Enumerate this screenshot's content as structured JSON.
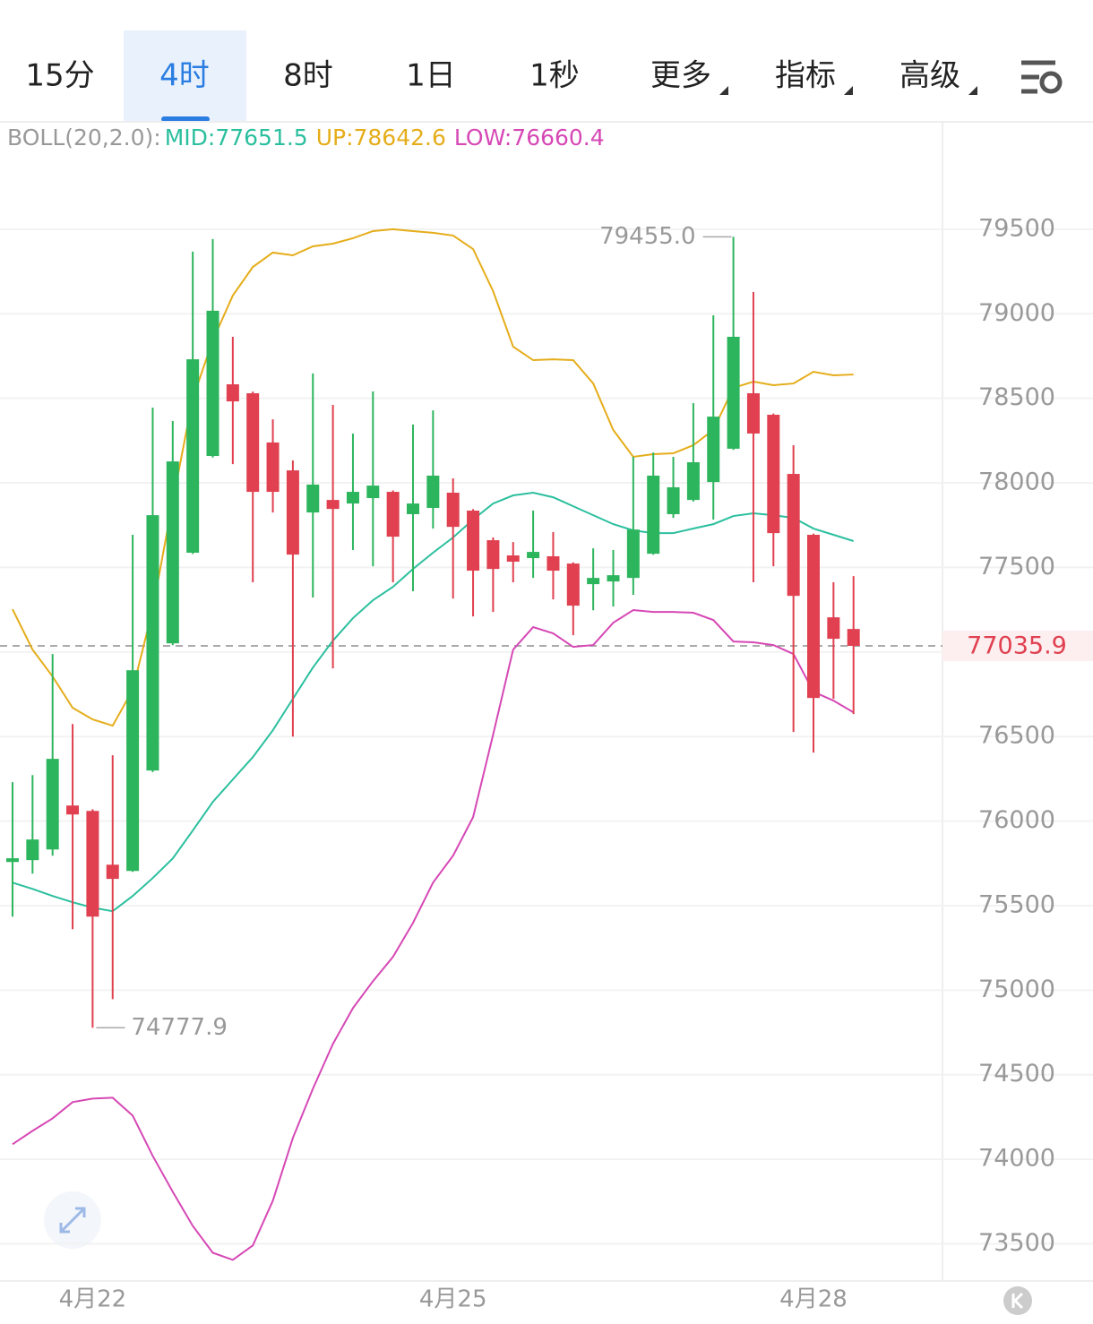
{
  "tabs": [
    "15分",
    "4时",
    "8时",
    "1日",
    "1秒",
    "更多",
    "指标",
    "高级"
  ],
  "chart_data": {
    "type": "candlestick",
    "indicator": "BOLL(20,2.0):",
    "categories": [
      null,
      null,
      null,
      null,
      "4月22",
      null,
      null,
      null,
      null,
      null,
      null,
      null,
      null,
      null,
      null,
      null,
      null,
      null,
      null,
      null,
      null,
      null,
      "4月25",
      null,
      null,
      null,
      null,
      null,
      null,
      null,
      null,
      null,
      null,
      null,
      null,
      null,
      null,
      null,
      null,
      null,
      "4月28",
      null,
      null
    ],
    "up_color": "#2db55d",
    "down_color": "#e0404f",
    "open": [
      75758,
      75769,
      75832,
      76092,
      76060,
      75742,
      75705,
      76299,
      77051,
      77587,
      78159,
      78583,
      78530,
      78239,
      78074,
      77825,
      77899,
      77878,
      77910,
      77947,
      77815,
      77852,
      77942,
      77836,
      77661,
      77571,
      77555,
      77566,
      77523,
      77401,
      77417,
      77438,
      77581,
      77815,
      77899,
      78005,
      78202,
      78530,
      78403,
      78053,
      77693,
      77205,
      77136
    ],
    "high": [
      76230,
      76272,
      76988,
      76574,
      76070,
      76389,
      77693,
      78445,
      78366,
      79368,
      79442,
      78864,
      78540,
      78376,
      78133,
      78647,
      78461,
      78292,
      78541,
      77955,
      78345,
      78429,
      78027,
      77845,
      77677,
      77650,
      77836,
      77709,
      77530,
      77613,
      77603,
      78154,
      78180,
      78154,
      78472,
      78991,
      79455,
      79129,
      78410,
      78223,
      77700,
      77412,
      77449
    ],
    "low": [
      75435,
      75689,
      75795,
      75361,
      74777.9,
      74947,
      75700,
      76290,
      77040,
      77580,
      78150,
      78111,
      77412,
      77825,
      76500,
      77322,
      76903,
      77603,
      77507,
      77412,
      77359,
      77730,
      77316,
      77210,
      77237,
      77412,
      77438,
      77311,
      77099,
      77247,
      77269,
      77338,
      77575,
      77793,
      77890,
      77783,
      78195,
      77412,
      77507,
      76527,
      76405,
      76723,
      76633
    ],
    "close": [
      75780,
      75891,
      76368,
      76039,
      75435,
      75658,
      76892,
      77809,
      78127,
      78731,
      79018,
      78482,
      77947,
      77947,
      77576,
      77990,
      77846,
      77947,
      77984,
      77682,
      77878,
      78043,
      77740,
      77481,
      77491,
      77534,
      77592,
      77481,
      77274,
      77438,
      77454,
      77724,
      78043,
      77974,
      78122,
      78392,
      78864,
      78292,
      77703,
      77332,
      76728,
      77078,
      77035.9
    ],
    "overlays": [
      {
        "name": "MID:77651.5",
        "color": "#2bbf9e",
        "values": [
          75636,
          75599,
          75557,
          75520,
          75488,
          75467,
          75557,
          75663,
          75779,
          75944,
          76113,
          76246,
          76378,
          76537,
          76723,
          76908,
          77067,
          77200,
          77306,
          77385,
          77491,
          77587,
          77677,
          77783,
          77878,
          77926,
          77942,
          77915,
          77862,
          77809,
          77756,
          77719,
          77703,
          77703,
          77730,
          77756,
          77804,
          77820,
          77809,
          77793,
          77730,
          77693,
          77656
        ]
      },
      {
        "name": "UP:78642.6",
        "color": "#e5ad1a",
        "values": [
          77253,
          77014,
          76855,
          76670,
          76601,
          76564,
          76776,
          77253,
          77889,
          78498,
          78843,
          79108,
          79277,
          79362,
          79346,
          79399,
          79415,
          79447,
          79489,
          79500,
          79489,
          79479,
          79463,
          79383,
          79134,
          78806,
          78726,
          78731,
          78726,
          78588,
          78313,
          78154,
          78170,
          78175,
          78223,
          78313,
          78562,
          78599,
          78578,
          78588,
          78657,
          78636,
          78641
        ]
      },
      {
        "name": "LOW:76660.4",
        "color": "#d648b5",
        "values": [
          74089,
          74168,
          74242,
          74338,
          74359,
          74364,
          74258,
          74020,
          73808,
          73606,
          73447,
          73405,
          73490,
          73755,
          74126,
          74417,
          74682,
          74894,
          75053,
          75197,
          75398,
          75636,
          75795,
          76023,
          76511,
          77014,
          77147,
          77110,
          77030,
          77041,
          77173,
          77248,
          77237,
          77237,
          77232,
          77189,
          77062,
          77057,
          77041,
          76988,
          76765,
          76712,
          76643
        ]
      }
    ],
    "ylim": [
      73280,
      80130
    ],
    "yticks": [
      73500,
      74000,
      74500,
      75000,
      75500,
      76000,
      76500,
      77000,
      77500,
      78000,
      78500,
      79000,
      79500
    ],
    "hidden_tick": 77000,
    "grid": true,
    "last_price": 77035.9,
    "max_marker": {
      "value": 79455,
      "label": "79455.0"
    },
    "min_marker": 74777.9
  }
}
